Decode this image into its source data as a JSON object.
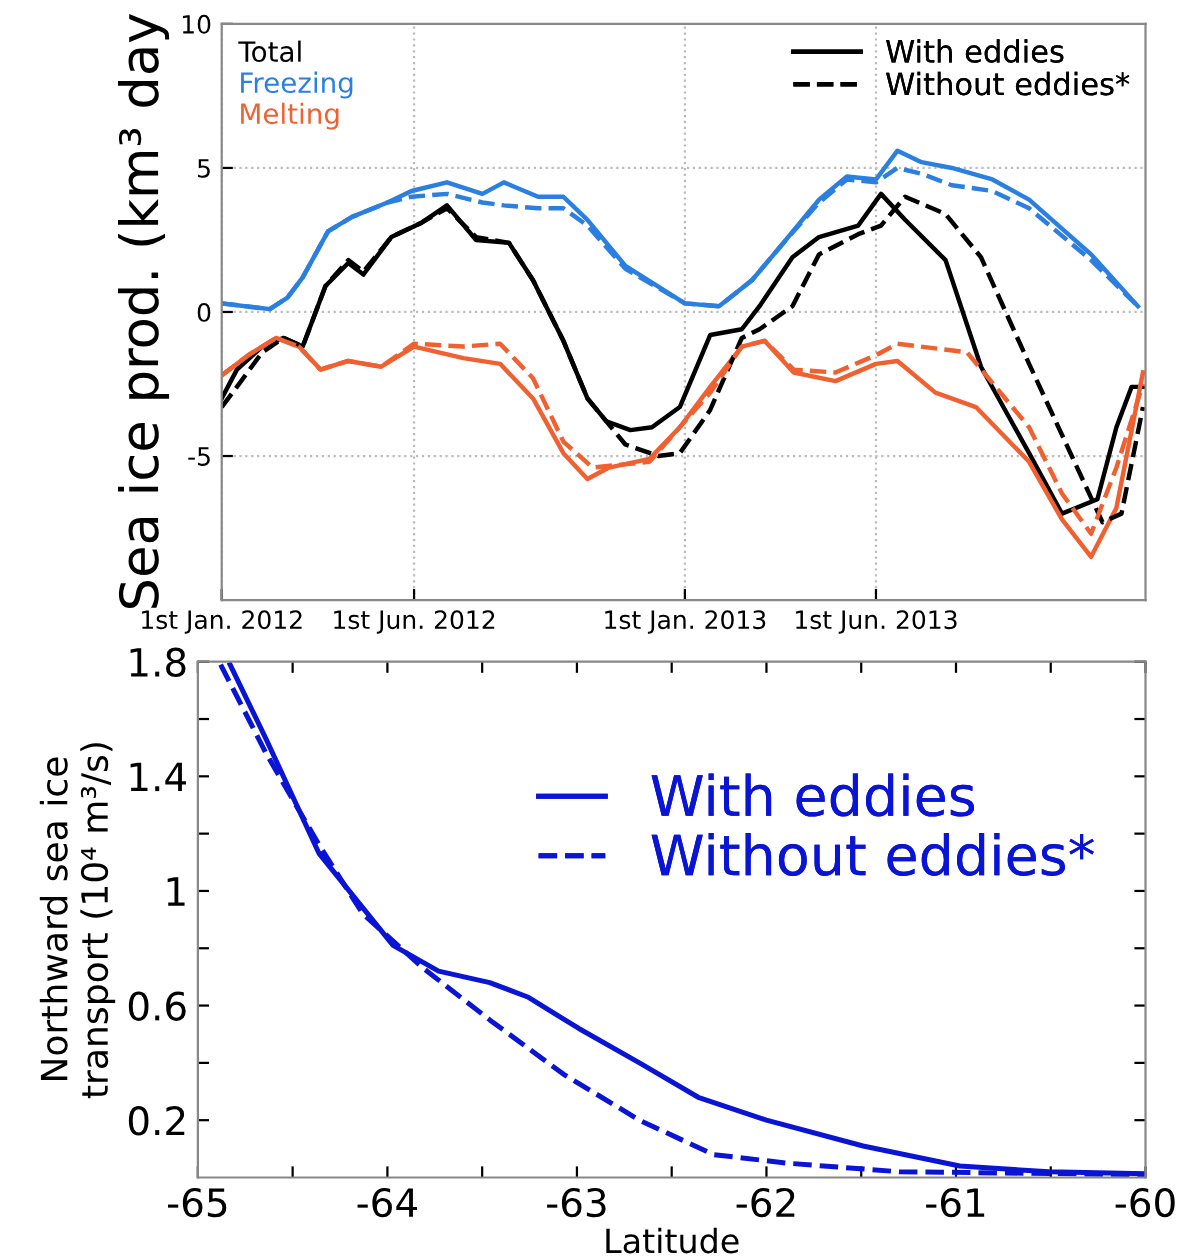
{
  "chart_data": [
    {
      "type": "line",
      "ylabel": "Sea ice prod. (km³ day",
      "xlim": [
        "2012-01-01",
        "2013-12-31"
      ],
      "xticks": [
        {
          "value": "2012-01-01",
          "label": "1st Jan. 2012"
        },
        {
          "value": "2012-06-01",
          "label": "1st Jun. 2012"
        },
        {
          "value": "2013-01-01",
          "label": "1st Jan. 2013"
        },
        {
          "value": "2013-06-01",
          "label": "1st Jun. 2013"
        }
      ],
      "ylim": [
        -10,
        10
      ],
      "yticks": [
        10,
        5,
        0,
        -5
      ],
      "grid": true,
      "legend": "top left",
      "annotations": [
        "With eddies",
        "Without eddies*"
      ],
      "series": [
        {
          "name": "Total",
          "color": "#000000",
          "line_style": "solid",
          "x": [
            "2012-01-01",
            "2012-01-13",
            "2012-02-02",
            "2012-02-19",
            "2012-03-05",
            "2012-03-23",
            "2012-04-10",
            "2012-04-22",
            "2012-05-14",
            "2012-06-07",
            "2012-06-27",
            "2012-07-20",
            "2012-08-15",
            "2012-09-03",
            "2012-09-27",
            "2012-10-16",
            "2012-10-31",
            "2012-11-19",
            "2012-12-06",
            "2012-12-28",
            "2013-01-21",
            "2013-02-15",
            "2013-03-01",
            "2013-03-27",
            "2013-04-17",
            "2013-05-18",
            "2013-06-05",
            "2013-06-24",
            "2013-07-26",
            "2013-08-23",
            "2013-09-30",
            "2013-10-26",
            "2013-11-23",
            "2013-12-08",
            "2013-12-20",
            "2013-12-29"
          ],
          "values": [
            -3.0,
            -2.0,
            -1.2,
            -0.9,
            -1.2,
            0.9,
            1.7,
            1.3,
            2.6,
            3.1,
            3.7,
            2.5,
            2.4,
            1.1,
            -1.0,
            -3.0,
            -3.8,
            -4.1,
            -4.0,
            -3.3,
            -0.8,
            -0.6,
            0.2,
            1.9,
            2.6,
            3.0,
            4.1,
            3.2,
            1.8,
            -1.9,
            -4.9,
            -7.0,
            -6.5,
            -4.0,
            -2.6,
            -2.6
          ]
        },
        {
          "name": "Freezing",
          "color": "#2a7fe0",
          "line_style": "solid",
          "x": [
            "2012-01-01",
            "2012-02-08",
            "2012-02-22",
            "2012-03-05",
            "2012-03-25",
            "2012-04-13",
            "2012-05-11",
            "2012-05-30",
            "2012-06-27",
            "2012-07-25",
            "2012-08-11",
            "2012-09-07",
            "2012-09-27",
            "2012-10-16",
            "2012-11-15",
            "2013-01-01",
            "2013-01-28",
            "2013-02-23",
            "2013-03-18",
            "2013-04-17",
            "2013-05-09",
            "2013-06-01",
            "2013-06-18",
            "2013-07-07",
            "2013-07-31",
            "2013-09-01",
            "2013-09-30",
            "2013-11-18",
            "2013-12-25"
          ],
          "values": [
            0.3,
            0.1,
            0.5,
            1.2,
            2.8,
            3.3,
            3.8,
            4.2,
            4.5,
            4.1,
            4.5,
            4.0,
            4.0,
            3.2,
            1.6,
            0.3,
            0.2,
            1.1,
            2.3,
            3.9,
            4.7,
            4.6,
            5.6,
            5.2,
            5.0,
            4.6,
            3.9,
            2.0,
            0.2
          ]
        },
        {
          "name": "Melting",
          "color": "#f06030",
          "line_style": "solid",
          "x": [
            "2012-01-01",
            "2012-01-22",
            "2012-02-13",
            "2012-03-02",
            "2012-03-19",
            "2012-04-10",
            "2012-05-06",
            "2012-06-01",
            "2012-07-10",
            "2012-08-08",
            "2012-09-03",
            "2012-09-27",
            "2012-10-16",
            "2012-11-02",
            "2012-12-04",
            "2012-12-28",
            "2013-01-21",
            "2013-02-15",
            "2013-03-05",
            "2013-03-28",
            "2013-04-30",
            "2013-06-01",
            "2013-06-18",
            "2013-07-18",
            "2013-08-19",
            "2013-09-30",
            "2013-10-26",
            "2013-11-18",
            "2013-12-08",
            "2013-12-29"
          ],
          "values": [
            -2.2,
            -1.5,
            -0.9,
            -1.2,
            -2.0,
            -1.7,
            -1.9,
            -1.2,
            -1.6,
            -1.8,
            -3.0,
            -4.9,
            -5.8,
            -5.4,
            -5.1,
            -4.0,
            -2.6,
            -1.2,
            -1.0,
            -2.1,
            -2.4,
            -1.8,
            -1.7,
            -2.8,
            -3.3,
            -5.2,
            -7.2,
            -8.5,
            -6.8,
            -2.1
          ]
        },
        {
          "color": "#000000",
          "line_style": "dashed",
          "x": [
            "2012-01-01",
            "2012-01-13",
            "2012-02-02",
            "2012-02-19",
            "2012-03-05",
            "2012-03-23",
            "2012-04-10",
            "2012-04-22",
            "2012-05-14",
            "2012-06-07",
            "2012-06-27",
            "2012-07-20",
            "2012-08-15",
            "2012-09-03",
            "2012-09-27",
            "2012-10-16",
            "2012-11-15",
            "2012-12-11",
            "2012-12-28",
            "2013-01-21",
            "2013-02-15",
            "2013-03-01",
            "2013-03-27",
            "2013-04-17",
            "2013-05-18",
            "2013-06-05",
            "2013-06-24",
            "2013-07-26",
            "2013-08-23",
            "2013-09-30",
            "2013-11-27",
            "2013-12-12",
            "2013-12-29"
          ],
          "values": [
            -3.3,
            -2.6,
            -1.4,
            -0.9,
            -1.2,
            0.9,
            1.8,
            1.4,
            2.6,
            3.1,
            3.6,
            2.6,
            2.4,
            1.1,
            -1.0,
            -3.0,
            -4.6,
            -5.0,
            -4.9,
            -3.4,
            -0.9,
            -0.6,
            0.2,
            2.0,
            2.7,
            3.0,
            4.0,
            3.4,
            1.9,
            -1.8,
            -7.3,
            -7.0,
            -3.3
          ]
        },
        {
          "color": "#2a7fe0",
          "line_style": "dashed",
          "x": [
            "2012-01-01",
            "2012-02-08",
            "2012-02-22",
            "2012-03-05",
            "2012-03-25",
            "2012-04-13",
            "2012-05-11",
            "2012-05-30",
            "2012-06-27",
            "2012-07-25",
            "2012-08-11",
            "2012-09-07",
            "2012-09-27",
            "2012-10-16",
            "2012-11-15",
            "2013-01-01",
            "2013-01-28",
            "2013-02-23",
            "2013-03-18",
            "2013-04-17",
            "2013-05-09",
            "2013-06-01",
            "2013-06-18",
            "2013-07-07",
            "2013-07-31",
            "2013-09-01",
            "2013-09-30",
            "2013-11-18",
            "2013-12-25"
          ],
          "values": [
            0.3,
            0.1,
            0.5,
            1.2,
            2.8,
            3.3,
            3.8,
            4.0,
            4.1,
            3.8,
            3.7,
            3.6,
            3.6,
            3.0,
            1.5,
            0.3,
            0.2,
            1.1,
            2.3,
            3.8,
            4.6,
            4.5,
            5.0,
            4.8,
            4.4,
            4.2,
            3.6,
            1.8,
            0.2
          ]
        },
        {
          "color": "#f06030",
          "line_style": "dashed",
          "x": [
            "2012-01-01",
            "2012-01-22",
            "2012-02-13",
            "2012-03-02",
            "2012-03-19",
            "2012-04-10",
            "2012-05-06",
            "2012-06-01",
            "2012-07-10",
            "2012-08-08",
            "2012-09-03",
            "2012-09-27",
            "2012-10-20",
            "2012-12-04",
            "2013-01-21",
            "2013-02-15",
            "2013-03-05",
            "2013-03-28",
            "2013-04-30",
            "2013-06-01",
            "2013-06-18",
            "2013-08-12",
            "2013-09-30",
            "2013-10-26",
            "2013-11-18",
            "2013-12-08",
            "2013-12-29"
          ],
          "values": [
            -2.2,
            -1.5,
            -0.9,
            -1.2,
            -2.0,
            -1.7,
            -1.9,
            -1.1,
            -1.2,
            -1.1,
            -2.3,
            -4.5,
            -5.4,
            -5.2,
            -2.8,
            -1.2,
            -1.0,
            -2.0,
            -2.1,
            -1.5,
            -1.1,
            -1.4,
            -4.0,
            -6.3,
            -7.7,
            -5.4,
            -2.5
          ]
        }
      ]
    },
    {
      "type": "line",
      "xlabel": "Latitude",
      "ylabel": "Northward sea ice\ntransport (10⁴ m³/s)",
      "xlim": [
        -65,
        -60
      ],
      "xticks": [
        -65,
        {
          "value": -64.5,
          "label": null
        },
        -64,
        {
          "value": -63.5,
          "label": null
        },
        -63,
        {
          "value": -62.5,
          "label": null
        },
        -62,
        {
          "value": -61.5,
          "label": null
        },
        -61,
        {
          "value": -60.5,
          "label": null
        },
        -60
      ],
      "ylim": [
        0,
        1.8
      ],
      "yticks": [
        0.2,
        {
          "value": 0.4,
          "label": null
        },
        0.6,
        {
          "value": 0.8,
          "label": null
        },
        1,
        {
          "value": 1.2,
          "label": null
        },
        1.4,
        {
          "value": 1.6,
          "label": null
        },
        1.8
      ],
      "legend": "top right",
      "series": [
        {
          "name": "With eddies",
          "color": "#0a14d4",
          "line_style": "solid",
          "x": [
            -64.83,
            -64.64,
            -64.36,
            -63.97,
            -63.73,
            -63.46,
            -63.26,
            -62.99,
            -62.67,
            -62.36,
            -62.0,
            -61.49,
            -60.98,
            -60.51,
            -60.0
          ],
          "values": [
            1.79,
            1.53,
            1.13,
            0.81,
            0.72,
            0.68,
            0.63,
            0.52,
            0.4,
            0.28,
            0.2,
            0.11,
            0.04,
            0.02,
            0.013
          ]
        },
        {
          "name": "Without eddies*",
          "color": "#0a14d4",
          "line_style": "dashed",
          "x": [
            -64.88,
            -64.64,
            -64.36,
            -64.13,
            -63.81,
            -63.46,
            -63.07,
            -62.67,
            -62.28,
            -61.89,
            -61.3,
            -60.0
          ],
          "values": [
            1.79,
            1.48,
            1.16,
            0.92,
            0.73,
            0.55,
            0.36,
            0.2,
            0.08,
            0.05,
            0.02,
            0.01
          ]
        }
      ]
    }
  ]
}
